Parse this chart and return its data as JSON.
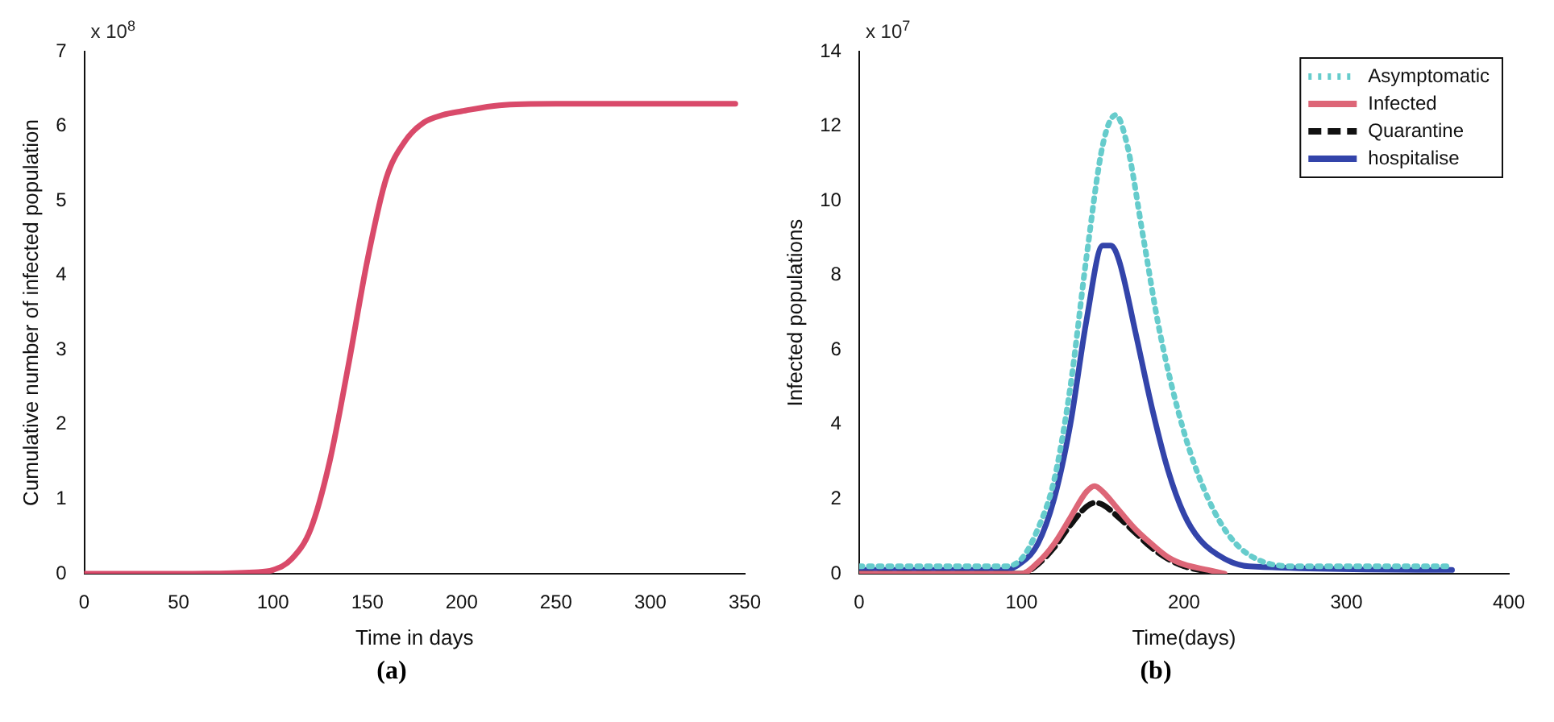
{
  "chart_data": [
    {
      "type": "line",
      "title": "(a)",
      "xlabel": "Time in days",
      "ylabel": "Cumulative number of infected population",
      "annotations": [
        "x 10$^{8}$"
      ],
      "xlim": [
        0,
        350
      ],
      "xticks": [
        0,
        50,
        100,
        150,
        200,
        250,
        300,
        350
      ],
      "ylim": [
        0,
        7
      ],
      "yticks": [
        0,
        1,
        2,
        3,
        4,
        5,
        6,
        7
      ],
      "grid": false,
      "legend": false,
      "series": [
        {
          "color": "#d94a6a",
          "x": [
            0,
            50,
            90,
            100,
            110,
            120,
            130,
            140,
            150,
            160,
            170,
            180,
            190,
            200,
            220,
            250,
            300,
            345
          ],
          "values": [
            0,
            0,
            0.02,
            0.05,
            0.2,
            0.6,
            1.5,
            2.8,
            4.2,
            5.3,
            5.8,
            6.05,
            6.15,
            6.2,
            6.28,
            6.3,
            6.3,
            6.3
          ]
        }
      ]
    },
    {
      "type": "line",
      "title": "(b)",
      "xlabel": "Time(days)",
      "ylabel": "Infected populations",
      "annotations": [
        "x 10$^{7}$"
      ],
      "xlim": [
        0,
        400
      ],
      "xticks": [
        0,
        100,
        200,
        300,
        400
      ],
      "ylim": [
        0,
        14
      ],
      "yticks": [
        0,
        2,
        4,
        6,
        8,
        10,
        12,
        14
      ],
      "grid": false,
      "legend": "top right",
      "series": [
        {
          "name": "Asymptomatic",
          "color": "#66cccc",
          "line_style": "dotted",
          "x": [
            0,
            90,
            100,
            110,
            120,
            130,
            140,
            150,
            158,
            165,
            175,
            185,
            200,
            215,
            230,
            250,
            270,
            365
          ],
          "values": [
            0.2,
            0.2,
            0.4,
            1.2,
            2.5,
            5,
            8.5,
            11.5,
            12.3,
            11.5,
            9,
            6.5,
            3.8,
            2,
            0.9,
            0.3,
            0.2,
            0.2
          ]
        },
        {
          "name": "Infected",
          "color": "#dd6677",
          "line_style": "solid",
          "x": [
            0,
            100,
            110,
            120,
            130,
            140,
            145,
            150,
            160,
            170,
            180,
            190,
            200,
            215,
            225
          ],
          "values": [
            0,
            0,
            0.3,
            0.8,
            1.5,
            2.2,
            2.35,
            2.2,
            1.7,
            1.2,
            0.8,
            0.45,
            0.25,
            0.1,
            0
          ]
        },
        {
          "name": "Quarantine",
          "color": "#111111",
          "line_style": "dashed",
          "x": [
            0,
            100,
            110,
            120,
            130,
            140,
            145,
            150,
            160,
            170,
            180,
            190,
            200,
            215,
            220
          ],
          "values": [
            0,
            0,
            0.25,
            0.7,
            1.3,
            1.8,
            1.9,
            1.85,
            1.5,
            1.1,
            0.7,
            0.4,
            0.2,
            0.05,
            0
          ]
        },
        {
          "name": "hospitalise",
          "color": "#3344aa",
          "line_style": "solid",
          "x": [
            0,
            90,
            100,
            110,
            120,
            130,
            140,
            150,
            155,
            160,
            170,
            180,
            190,
            200,
            210,
            225,
            240,
            365
          ],
          "values": [
            0.1,
            0.1,
            0.3,
            0.8,
            2,
            4,
            6.8,
            8.8,
            8.8,
            8.4,
            6.5,
            4.5,
            2.8,
            1.6,
            0.9,
            0.4,
            0.2,
            0.1
          ]
        }
      ]
    }
  ]
}
